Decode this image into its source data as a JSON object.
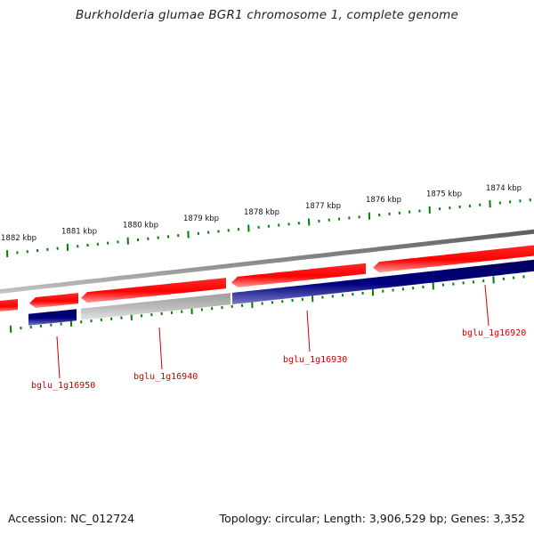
{
  "title": "Burkholderia glumae BGR1 chromosome 1, complete genome",
  "footer": {
    "accession": "Accession: NC_012724",
    "topology": "Topology: circular; Length: 3,906,529 bp; Genes: 3,352"
  },
  "colors": {
    "forward_gene": "#ff0000",
    "reverse_gene": "#000080",
    "non_coding": "#c0c0c0",
    "backbone": "#808080",
    "ticks": "#008000",
    "label": "#cc0000"
  },
  "scale_labels": [
    "1882 kbp",
    "1881 kbp",
    "1880 kbp",
    "1879 kbp",
    "1878 kbp",
    "1877 kbp",
    "1876 kbp",
    "1875 kbp",
    "1874 kbp"
  ],
  "gene_labels": [
    "bglu_1g16950",
    "bglu_1g16940",
    "bglu_1g16930",
    "bglu_1g16920"
  ]
}
